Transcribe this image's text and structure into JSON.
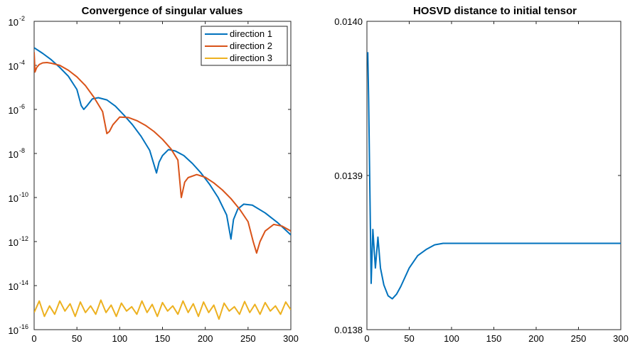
{
  "chart_data": [
    {
      "type": "line",
      "title": "Convergence of singular values",
      "xlabel": "",
      "ylabel": "",
      "yscale": "log",
      "xlim": [
        0,
        300
      ],
      "ylim": [
        1e-16,
        0.01
      ],
      "xticks": [
        0,
        50,
        100,
        150,
        200,
        250,
        300
      ],
      "xtick_labels": [
        "0",
        "50",
        "100",
        "150",
        "200",
        "250",
        "300"
      ],
      "yticks": [
        -16,
        -14,
        -12,
        -10,
        -8,
        -6,
        -4,
        -2
      ],
      "ytick_labels": [
        {
          "base": "10",
          "exp": "-16"
        },
        {
          "base": "10",
          "exp": "-14"
        },
        {
          "base": "10",
          "exp": "-12"
        },
        {
          "base": "10",
          "exp": "-10"
        },
        {
          "base": "10",
          "exp": "-8"
        },
        {
          "base": "10",
          "exp": "-6"
        },
        {
          "base": "10",
          "exp": "-4"
        },
        {
          "base": "10",
          "exp": "-2"
        }
      ],
      "legend_position": "top-right",
      "series": [
        {
          "name": "direction 1",
          "color": "#0072BD",
          "x": [
            0,
            10,
            20,
            30,
            40,
            50,
            55,
            58,
            62,
            68,
            75,
            85,
            95,
            105,
            115,
            125,
            135,
            143,
            146,
            150,
            157,
            165,
            175,
            185,
            195,
            205,
            215,
            225,
            230,
            233,
            238,
            245,
            255,
            270,
            285,
            300
          ],
          "y": [
            0.00063,
            0.00035,
            0.00018,
            8e-05,
            3.2e-05,
            8e-06,
            1.5e-06,
            1e-06,
            1.5e-06,
            3e-06,
            3.4e-06,
            2.7e-06,
            1.4e-06,
            5.5e-07,
            2e-07,
            6e-08,
            1.4e-08,
            1.3e-09,
            4e-09,
            8e-09,
            1.5e-08,
            1.3e-08,
            8e-09,
            3.5e-09,
            1.3e-09,
            4e-10,
            1e-10,
            1.6e-11,
            1.3e-12,
            1e-11,
            3e-11,
            5e-11,
            4.5e-11,
            2e-11,
            7e-12,
            2e-12
          ]
        },
        {
          "name": "direction 2",
          "color": "#D95319",
          "x": [
            0,
            1,
            3,
            6,
            10,
            15,
            20,
            30,
            40,
            50,
            60,
            70,
            80,
            85,
            88,
            92,
            100,
            110,
            120,
            130,
            140,
            150,
            160,
            168,
            172,
            176,
            180,
            190,
            200,
            210,
            220,
            230,
            240,
            250,
            256,
            260,
            264,
            270,
            280,
            290,
            300
          ],
          "y": [
            0.0004,
            5e-05,
            8e-05,
            0.00011,
            0.00013,
            0.000135,
            0.000125,
            0.0001,
            6e-05,
            3e-05,
            1.2e-05,
            3.5e-06,
            8e-07,
            8e-08,
            1e-07,
            2e-07,
            4.5e-07,
            4.3e-07,
            3.1e-07,
            1.9e-07,
            1e-07,
            4.4e-08,
            1.6e-08,
            5e-09,
            1e-10,
            5e-10,
            8e-10,
            1.1e-09,
            8.3e-10,
            4.6e-10,
            2.2e-10,
            8.9e-11,
            3e-11,
            8e-12,
            1e-12,
            3e-13,
            1e-12,
            3e-12,
            6e-12,
            5e-12,
            3e-12
          ]
        },
        {
          "name": "direction 3",
          "color": "#EDB120",
          "x": [
            0,
            6,
            12,
            18,
            24,
            30,
            36,
            42,
            48,
            54,
            60,
            66,
            72,
            78,
            84,
            90,
            96,
            102,
            108,
            114,
            120,
            126,
            132,
            138,
            144,
            150,
            156,
            162,
            168,
            174,
            180,
            186,
            192,
            198,
            204,
            210,
            216,
            222,
            228,
            234,
            240,
            246,
            252,
            258,
            264,
            270,
            276,
            282,
            288,
            294,
            300
          ],
          "y": [
            6e-16,
            2e-15,
            4e-16,
            1.2e-15,
            5e-16,
            2e-15,
            7e-16,
            1.5e-15,
            4e-16,
            1.8e-15,
            6e-16,
            1.2e-15,
            5e-16,
            2.2e-15,
            6e-16,
            1.3e-15,
            4e-16,
            1.6e-15,
            7e-16,
            1.1e-15,
            5e-16,
            2e-15,
            6e-16,
            1.4e-15,
            4e-16,
            1.7e-15,
            7e-16,
            1.2e-15,
            5e-16,
            2e-15,
            6e-16,
            1.5e-15,
            4e-16,
            1.8e-15,
            6e-16,
            1.3e-15,
            3e-16,
            1.6e-15,
            7e-16,
            1.1e-15,
            5e-16,
            1.9e-15,
            6e-16,
            1.4e-15,
            5e-16,
            1.7e-15,
            7e-16,
            1.2e-15,
            5e-16,
            1.8e-15,
            8e-16
          ]
        }
      ]
    },
    {
      "type": "line",
      "title": "HOSVD distance to initial tensor",
      "xlabel": "",
      "ylabel": "",
      "xlim": [
        0,
        300
      ],
      "ylim": [
        0.0138,
        0.014
      ],
      "xticks": [
        0,
        50,
        100,
        150,
        200,
        250,
        300
      ],
      "xtick_labels": [
        "0",
        "50",
        "100",
        "150",
        "200",
        "250",
        "300"
      ],
      "yticks": [
        0.0138,
        0.0139,
        0.014
      ],
      "ytick_labels": [
        "0.0138",
        "0.0139",
        "0.0140"
      ],
      "series": [
        {
          "color": "#0072BD",
          "x": [
            1,
            2,
            3,
            4,
            5,
            7,
            10,
            13,
            16,
            20,
            25,
            30,
            35,
            40,
            50,
            60,
            70,
            80,
            90,
            100,
            120,
            140,
            160,
            200,
            250,
            300
          ],
          "y": [
            0.01398,
            0.01395,
            0.01391,
            0.01387,
            0.01383,
            0.013865,
            0.01384,
            0.01386,
            0.01384,
            0.013829,
            0.013822,
            0.01382,
            0.013823,
            0.013828,
            0.01384,
            0.013848,
            0.013852,
            0.013855,
            0.013856,
            0.013856,
            0.013856,
            0.013856,
            0.013856,
            0.013856,
            0.013856,
            0.013856
          ]
        }
      ]
    }
  ]
}
